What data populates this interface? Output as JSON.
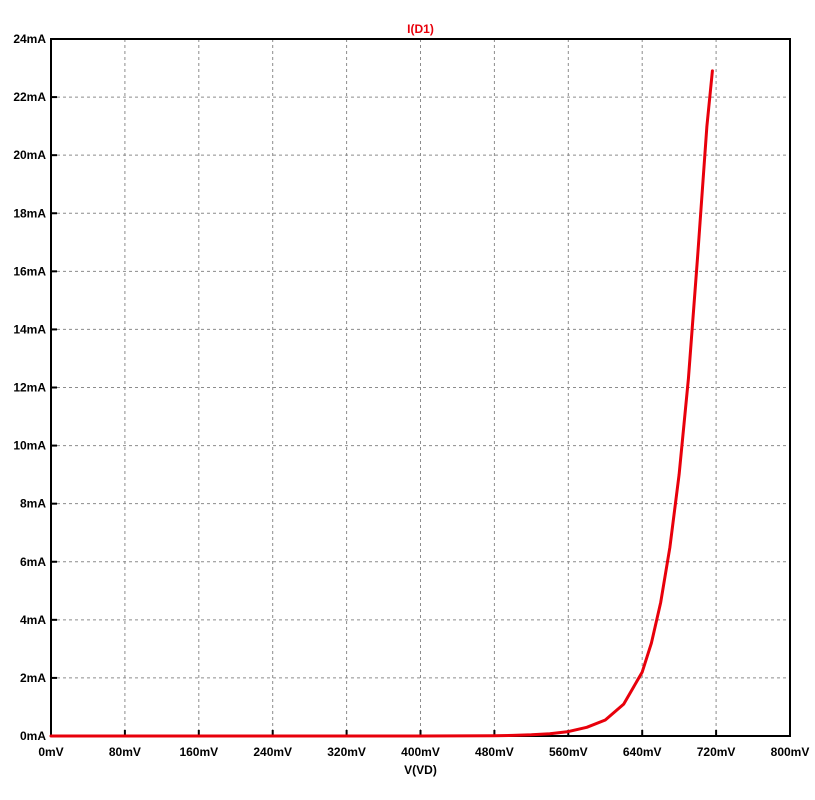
{
  "chart_data": {
    "type": "line",
    "title": "I(D1)",
    "xlabel": "V(VD)",
    "ylabel": "",
    "xlim": [
      0,
      800
    ],
    "ylim": [
      0,
      24
    ],
    "x_tick_labels": [
      "0mV",
      "80mV",
      "160mV",
      "240mV",
      "320mV",
      "400mV",
      "480mV",
      "560mV",
      "640mV",
      "720mV",
      "800mV"
    ],
    "y_tick_labels": [
      "0mA",
      "2mA",
      "4mA",
      "6mA",
      "8mA",
      "10mA",
      "12mA",
      "14mA",
      "16mA",
      "18mA",
      "20mA",
      "22mA",
      "24mA"
    ],
    "grid": true,
    "series": [
      {
        "name": "I(D1)",
        "color": "#e8000b",
        "x": [
          0,
          80,
          160,
          240,
          320,
          400,
          480,
          500,
          520,
          540,
          560,
          580,
          600,
          620,
          640,
          650,
          660,
          670,
          680,
          690,
          700,
          710,
          716
        ],
        "y": [
          0,
          0,
          0,
          0,
          0,
          0,
          0.01,
          0.02,
          0.04,
          0.08,
          0.15,
          0.3,
          0.55,
          1.1,
          2.2,
          3.2,
          4.6,
          6.5,
          9.0,
          12.3,
          16.5,
          21.0,
          22.9
        ]
      }
    ]
  }
}
